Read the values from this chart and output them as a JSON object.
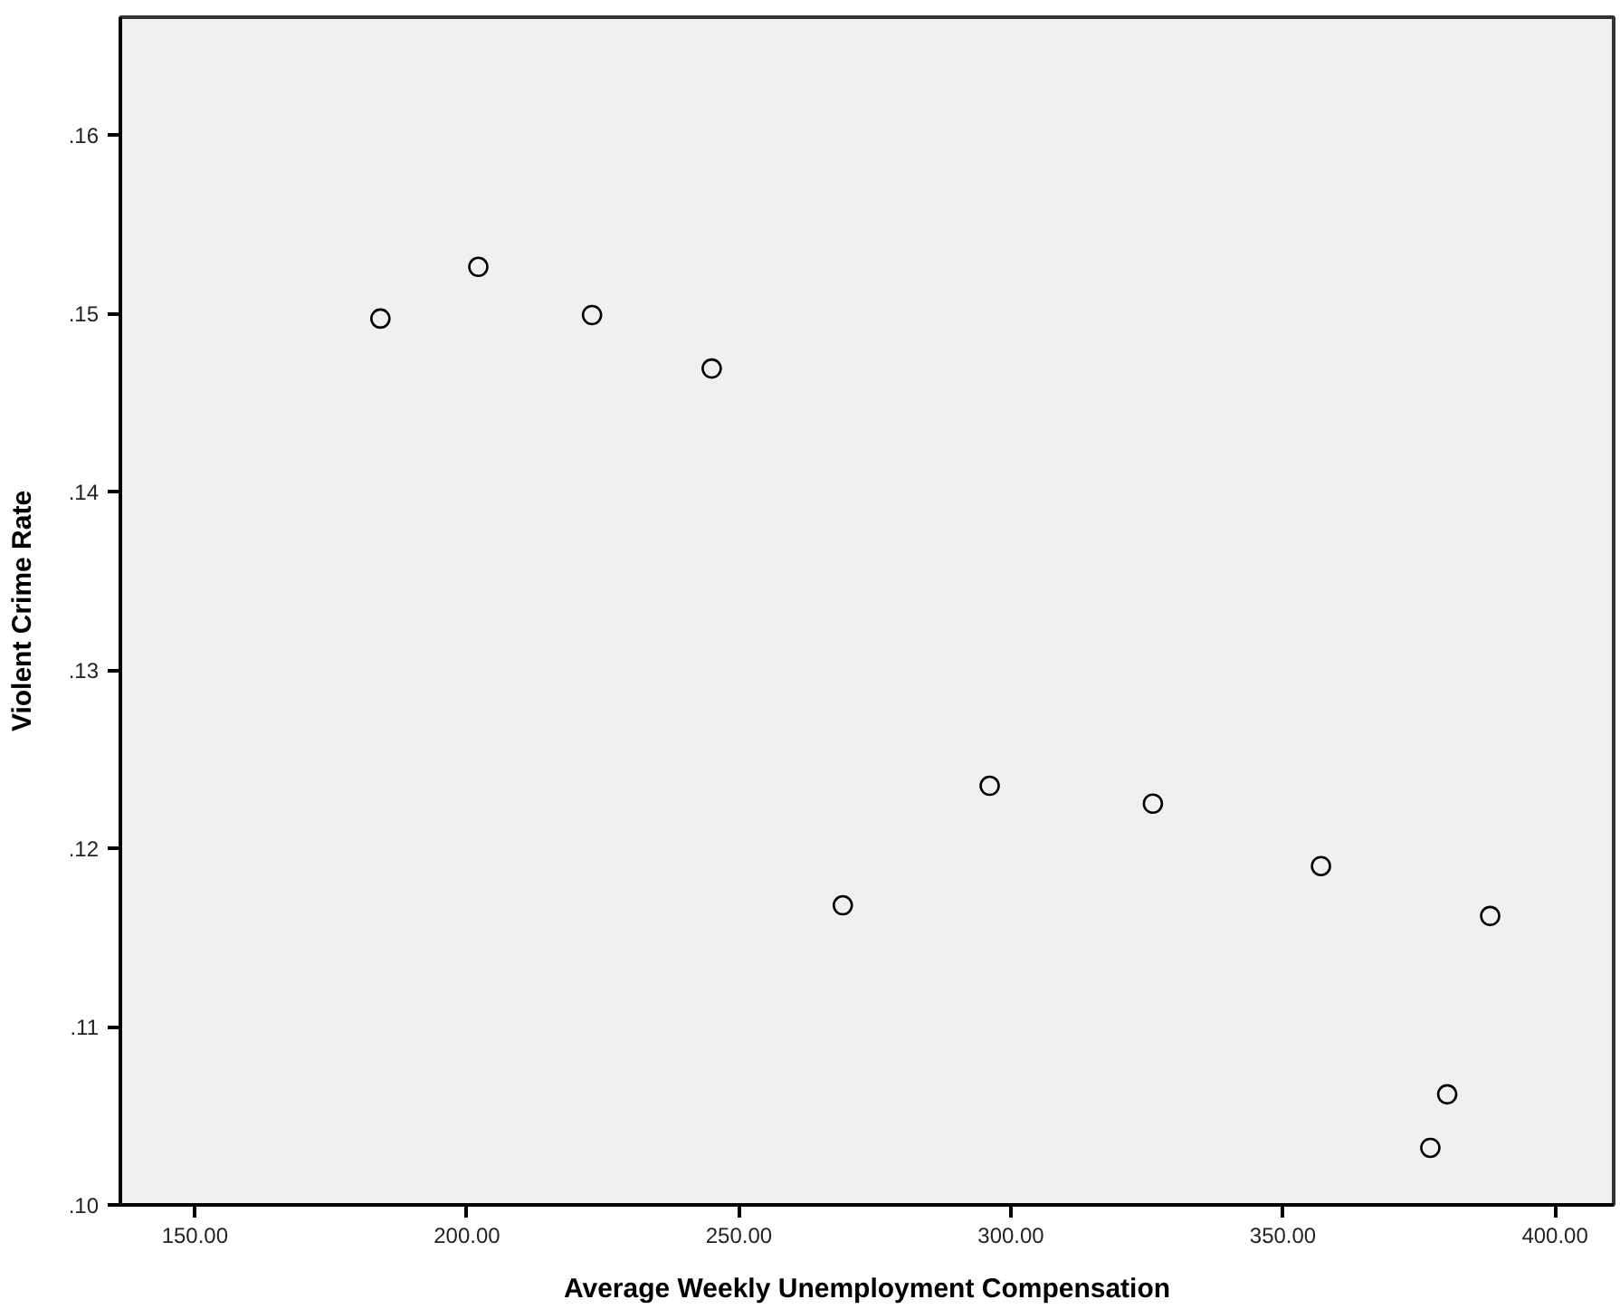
{
  "chart_data": {
    "type": "scatter",
    "xlabel": "Average Weekly Unemployment Compensation",
    "ylabel": "Violent Crime Rate",
    "x": [
      184.1,
      202.1,
      223.0,
      245.0,
      269.1,
      296.1,
      326.1,
      357.0,
      388.1,
      380.2,
      377.1
    ],
    "series": [
      {
        "color": "#000000",
        "values": [
          0.1497,
          0.1526,
          0.1499,
          0.1469,
          0.1168,
          0.1235,
          0.1225,
          0.119,
          0.1162,
          0.1062,
          0.1032
        ]
      }
    ],
    "marker": "circle",
    "grid": false,
    "xlim": [
      136.3,
      410.8
    ],
    "ylim": [
      0.1,
      0.1666
    ],
    "xticks": [
      {
        "value": 150,
        "label": "150.00"
      },
      {
        "value": 200,
        "label": "200.00"
      },
      {
        "value": 250,
        "label": "250.00"
      },
      {
        "value": 300,
        "label": "300.00"
      },
      {
        "value": 350,
        "label": "350.00"
      },
      {
        "value": 400,
        "label": "400.00"
      }
    ],
    "yticks": [
      {
        "value": 0.1,
        "label": ".10"
      },
      {
        "value": 0.11,
        "label": ".11"
      },
      {
        "value": 0.12,
        "label": ".12"
      },
      {
        "value": 0.13,
        "label": ".13"
      },
      {
        "value": 0.14,
        "label": ".14"
      },
      {
        "value": 0.15,
        "label": ".15"
      },
      {
        "value": 0.16,
        "label": ".16"
      }
    ]
  }
}
